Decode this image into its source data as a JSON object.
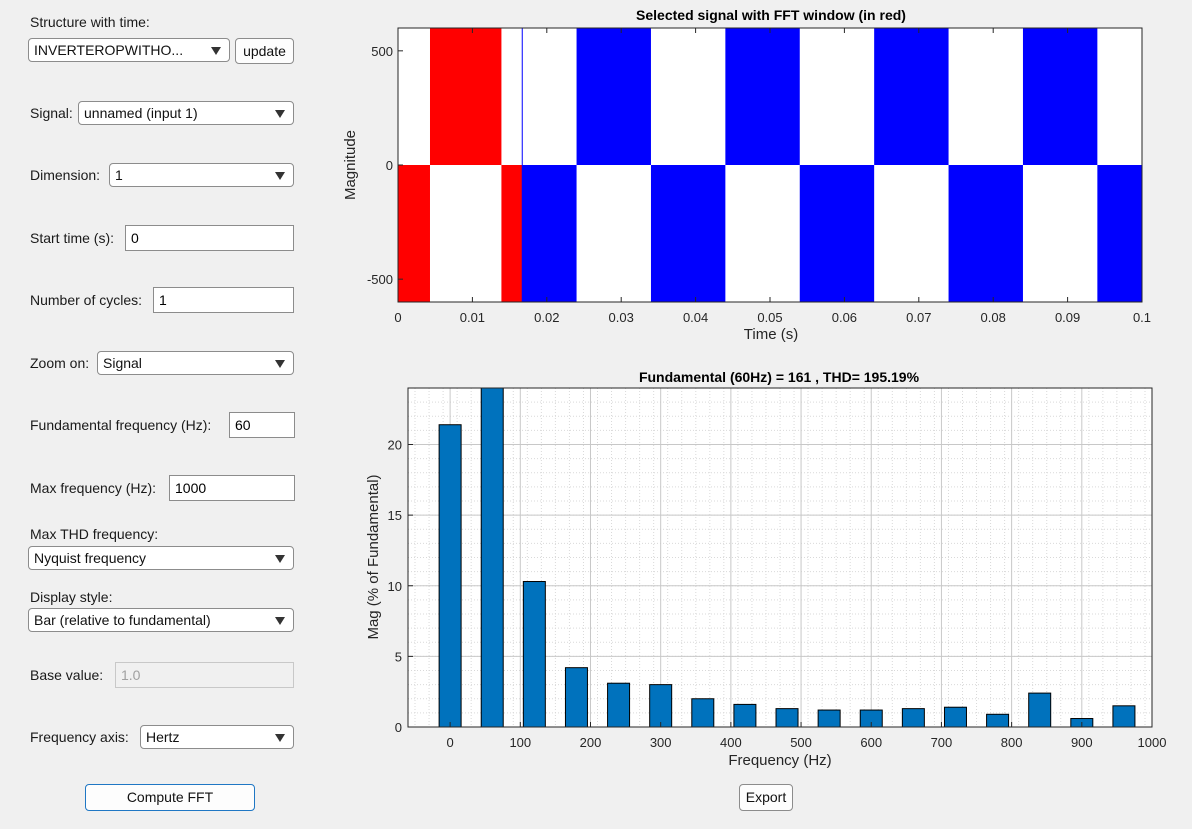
{
  "controls": {
    "structure_label": "Structure with time:",
    "structure_value": "INVERTEROPWITHO...",
    "update_label": "update",
    "signal_label": "Signal:",
    "signal_value": "unnamed (input 1)",
    "dimension_label": "Dimension:",
    "dimension_value": "1",
    "start_time_label": "Start time (s):",
    "start_time_value": "0",
    "cycles_label": "Number of cycles:",
    "cycles_value": "1",
    "zoom_label": "Zoom on:",
    "zoom_value": "Signal",
    "fund_freq_label": "Fundamental frequency (Hz):",
    "fund_freq_value": "60",
    "max_freq_label": "Max frequency (Hz):",
    "max_freq_value": "1000",
    "max_thd_label": "Max THD frequency:",
    "max_thd_value": "Nyquist frequency",
    "display_style_label": "Display style:",
    "display_style_value": "Bar (relative to fundamental)",
    "base_value_label": "Base value:",
    "base_value_placeholder": "1.0",
    "freq_axis_label": "Frequency axis:",
    "freq_axis_value": "Hertz",
    "compute_label": "Compute FFT",
    "export_label": "Export"
  },
  "chart_data": [
    {
      "type": "line",
      "title": "Selected signal with FFT window (in red)",
      "xlabel": "Time (s)",
      "ylabel": "Magnitude",
      "xlim": [
        0,
        0.1
      ],
      "ylim": [
        -600,
        600
      ],
      "x_ticks": [
        "0",
        "0.01",
        "0.02",
        "0.03",
        "0.04",
        "0.05",
        "0.06",
        "0.07",
        "0.08",
        "0.09",
        "0.1"
      ],
      "y_ticks": [
        "500",
        "0",
        "-500"
      ],
      "window_color": "#ff0000",
      "signal_color": "#0000ff",
      "fft_window": [
        0,
        0.0167
      ],
      "pulses": [
        {
          "start": 0.0,
          "end": 0.0043,
          "level": -1
        },
        {
          "start": 0.0043,
          "end": 0.0139,
          "level": 1
        },
        {
          "start": 0.0139,
          "end": 0.0167,
          "level": -1
        },
        {
          "start": 0.0167,
          "end": 0.024,
          "level": -1
        },
        {
          "start": 0.024,
          "end": 0.034,
          "level": 1
        },
        {
          "start": 0.034,
          "end": 0.044,
          "level": -1
        },
        {
          "start": 0.044,
          "end": 0.054,
          "level": 1
        },
        {
          "start": 0.054,
          "end": 0.064,
          "level": -1
        },
        {
          "start": 0.064,
          "end": 0.074,
          "level": 1
        },
        {
          "start": 0.074,
          "end": 0.084,
          "level": -1
        },
        {
          "start": 0.084,
          "end": 0.094,
          "level": 1
        },
        {
          "start": 0.094,
          "end": 0.1,
          "level": -1
        }
      ],
      "amplitude": 600,
      "grid": false
    },
    {
      "type": "bar",
      "title": "Fundamental (60Hz) = 161 , THD= 195.19%",
      "xlabel": "Frequency (Hz)",
      "ylabel": "Mag (% of Fundamental)",
      "xlim": [
        -60,
        1000
      ],
      "ylim": [
        0,
        24
      ],
      "x_ticks": [
        "0",
        "100",
        "200",
        "300",
        "400",
        "500",
        "600",
        "700",
        "800",
        "900",
        "1000"
      ],
      "y_ticks": [
        "0",
        "5",
        "10",
        "15",
        "20"
      ],
      "bar_color": "#0072bd",
      "x": [
        0,
        60,
        120,
        180,
        240,
        300,
        360,
        420,
        480,
        540,
        600,
        660,
        720,
        780,
        840,
        900,
        960
      ],
      "values": [
        21.4,
        24.0,
        10.3,
        4.2,
        3.1,
        3.0,
        2.0,
        1.6,
        1.3,
        1.2,
        1.2,
        1.3,
        1.4,
        0.9,
        2.4,
        0.6,
        1.5
      ],
      "grid": true
    }
  ]
}
